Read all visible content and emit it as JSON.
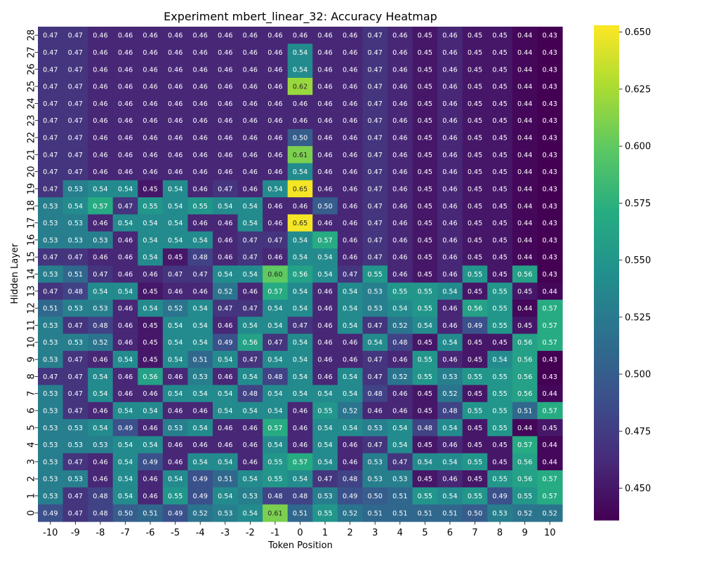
{
  "chart_data": {
    "type": "heatmap",
    "title": "Experiment mbert_linear_32: Accuracy Heatmap",
    "xlabel": "Token Position",
    "ylabel": "Hidden Layer",
    "x": [
      "-10",
      "-9",
      "-8",
      "-7",
      "-6",
      "-5",
      "-4",
      "-3",
      "-2",
      "-1",
      "0",
      "1",
      "2",
      "3",
      "4",
      "5",
      "6",
      "7",
      "8",
      "9",
      "10"
    ],
    "y": [
      "28",
      "27",
      "26",
      "25",
      "24",
      "23",
      "22",
      "21",
      "20",
      "19",
      "18",
      "17",
      "16",
      "15",
      "14",
      "13",
      "12",
      "11",
      "10",
      "9",
      "8",
      "7",
      "6",
      "5",
      "4",
      "3",
      "2",
      "1",
      "0"
    ],
    "values": [
      [
        0.47,
        0.47,
        0.46,
        0.46,
        0.46,
        0.46,
        0.46,
        0.46,
        0.46,
        0.46,
        0.46,
        0.46,
        0.46,
        0.47,
        0.46,
        0.45,
        0.46,
        0.45,
        0.45,
        0.44,
        0.43
      ],
      [
        0.47,
        0.47,
        0.46,
        0.46,
        0.46,
        0.46,
        0.46,
        0.46,
        0.46,
        0.46,
        0.54,
        0.46,
        0.46,
        0.47,
        0.46,
        0.45,
        0.46,
        0.45,
        0.45,
        0.44,
        0.43
      ],
      [
        0.47,
        0.47,
        0.46,
        0.46,
        0.46,
        0.46,
        0.46,
        0.46,
        0.46,
        0.46,
        0.54,
        0.46,
        0.46,
        0.47,
        0.46,
        0.45,
        0.46,
        0.45,
        0.45,
        0.44,
        0.43
      ],
      [
        0.47,
        0.47,
        0.46,
        0.46,
        0.46,
        0.46,
        0.46,
        0.46,
        0.46,
        0.46,
        0.62,
        0.46,
        0.46,
        0.47,
        0.46,
        0.45,
        0.46,
        0.45,
        0.45,
        0.44,
        0.43
      ],
      [
        0.47,
        0.47,
        0.46,
        0.46,
        0.46,
        0.46,
        0.46,
        0.46,
        0.46,
        0.46,
        0.46,
        0.46,
        0.46,
        0.47,
        0.46,
        0.45,
        0.46,
        0.45,
        0.45,
        0.44,
        0.43
      ],
      [
        0.47,
        0.47,
        0.46,
        0.46,
        0.46,
        0.46,
        0.46,
        0.46,
        0.46,
        0.46,
        0.46,
        0.46,
        0.46,
        0.47,
        0.46,
        0.45,
        0.46,
        0.45,
        0.45,
        0.44,
        0.43
      ],
      [
        0.47,
        0.47,
        0.46,
        0.46,
        0.46,
        0.46,
        0.46,
        0.46,
        0.46,
        0.46,
        0.5,
        0.46,
        0.46,
        0.47,
        0.46,
        0.45,
        0.46,
        0.45,
        0.45,
        0.44,
        0.43
      ],
      [
        0.47,
        0.47,
        0.46,
        0.46,
        0.46,
        0.46,
        0.46,
        0.46,
        0.46,
        0.46,
        0.61,
        0.46,
        0.46,
        0.47,
        0.46,
        0.45,
        0.46,
        0.45,
        0.45,
        0.44,
        0.43
      ],
      [
        0.47,
        0.47,
        0.46,
        0.46,
        0.46,
        0.46,
        0.46,
        0.46,
        0.46,
        0.46,
        0.54,
        0.46,
        0.46,
        0.47,
        0.46,
        0.45,
        0.46,
        0.45,
        0.45,
        0.44,
        0.43
      ],
      [
        0.47,
        0.53,
        0.54,
        0.54,
        0.45,
        0.54,
        0.46,
        0.47,
        0.46,
        0.54,
        0.65,
        0.46,
        0.46,
        0.47,
        0.46,
        0.45,
        0.46,
        0.45,
        0.45,
        0.44,
        0.43
      ],
      [
        0.53,
        0.54,
        0.57,
        0.47,
        0.55,
        0.54,
        0.55,
        0.54,
        0.54,
        0.46,
        0.46,
        0.5,
        0.46,
        0.47,
        0.46,
        0.45,
        0.46,
        0.45,
        0.45,
        0.44,
        0.43
      ],
      [
        0.53,
        0.53,
        0.46,
        0.54,
        0.54,
        0.54,
        0.46,
        0.46,
        0.54,
        0.46,
        0.65,
        0.46,
        0.46,
        0.47,
        0.46,
        0.45,
        0.46,
        0.45,
        0.45,
        0.44,
        0.43
      ],
      [
        0.53,
        0.53,
        0.53,
        0.46,
        0.54,
        0.54,
        0.54,
        0.46,
        0.47,
        0.47,
        0.54,
        0.57,
        0.46,
        0.47,
        0.46,
        0.45,
        0.46,
        0.45,
        0.45,
        0.44,
        0.43
      ],
      [
        0.47,
        0.47,
        0.46,
        0.46,
        0.54,
        0.45,
        0.48,
        0.46,
        0.47,
        0.46,
        0.54,
        0.54,
        0.46,
        0.47,
        0.46,
        0.45,
        0.46,
        0.45,
        0.45,
        0.44,
        0.43
      ],
      [
        0.53,
        0.51,
        0.47,
        0.46,
        0.46,
        0.47,
        0.47,
        0.54,
        0.54,
        0.6,
        0.56,
        0.54,
        0.47,
        0.55,
        0.46,
        0.45,
        0.46,
        0.55,
        0.45,
        0.56,
        0.43
      ],
      [
        0.47,
        0.48,
        0.54,
        0.54,
        0.45,
        0.46,
        0.46,
        0.52,
        0.46,
        0.57,
        0.54,
        0.46,
        0.54,
        0.53,
        0.55,
        0.55,
        0.54,
        0.45,
        0.55,
        0.45,
        0.44
      ],
      [
        0.51,
        0.53,
        0.53,
        0.46,
        0.54,
        0.52,
        0.54,
        0.47,
        0.47,
        0.54,
        0.54,
        0.46,
        0.54,
        0.53,
        0.54,
        0.55,
        0.46,
        0.56,
        0.55,
        0.44,
        0.57
      ],
      [
        0.53,
        0.47,
        0.48,
        0.46,
        0.45,
        0.54,
        0.54,
        0.46,
        0.54,
        0.54,
        0.47,
        0.46,
        0.54,
        0.47,
        0.52,
        0.54,
        0.46,
        0.49,
        0.55,
        0.45,
        0.57
      ],
      [
        0.53,
        0.53,
        0.52,
        0.46,
        0.45,
        0.54,
        0.54,
        0.49,
        0.56,
        0.47,
        0.54,
        0.46,
        0.46,
        0.54,
        0.48,
        0.45,
        0.54,
        0.45,
        0.45,
        0.56,
        0.57
      ],
      [
        0.53,
        0.47,
        0.46,
        0.54,
        0.45,
        0.54,
        0.51,
        0.54,
        0.47,
        0.54,
        0.54,
        0.46,
        0.46,
        0.47,
        0.46,
        0.55,
        0.46,
        0.45,
        0.54,
        0.56,
        0.43
      ],
      [
        0.47,
        0.47,
        0.54,
        0.46,
        0.56,
        0.46,
        0.53,
        0.46,
        0.54,
        0.48,
        0.54,
        0.46,
        0.54,
        0.47,
        0.52,
        0.55,
        0.53,
        0.55,
        0.55,
        0.56,
        0.43
      ],
      [
        0.53,
        0.47,
        0.54,
        0.46,
        0.46,
        0.54,
        0.54,
        0.54,
        0.48,
        0.54,
        0.54,
        0.54,
        0.54,
        0.48,
        0.46,
        0.45,
        0.52,
        0.45,
        0.55,
        0.56,
        0.44
      ],
      [
        0.53,
        0.47,
        0.46,
        0.54,
        0.54,
        0.46,
        0.46,
        0.54,
        0.54,
        0.54,
        0.46,
        0.55,
        0.52,
        0.46,
        0.46,
        0.45,
        0.48,
        0.55,
        0.55,
        0.51,
        0.57
      ],
      [
        0.53,
        0.53,
        0.54,
        0.49,
        0.46,
        0.53,
        0.54,
        0.46,
        0.46,
        0.57,
        0.46,
        0.54,
        0.54,
        0.53,
        0.54,
        0.48,
        0.54,
        0.45,
        0.55,
        0.44,
        0.45
      ],
      [
        0.53,
        0.53,
        0.53,
        0.54,
        0.54,
        0.46,
        0.46,
        0.46,
        0.46,
        0.54,
        0.46,
        0.54,
        0.46,
        0.47,
        0.54,
        0.45,
        0.46,
        0.45,
        0.45,
        0.57,
        0.44
      ],
      [
        0.53,
        0.47,
        0.46,
        0.54,
        0.49,
        0.46,
        0.54,
        0.54,
        0.46,
        0.55,
        0.57,
        0.54,
        0.46,
        0.53,
        0.47,
        0.54,
        0.54,
        0.55,
        0.45,
        0.56,
        0.44
      ],
      [
        0.53,
        0.53,
        0.46,
        0.54,
        0.46,
        0.54,
        0.49,
        0.51,
        0.54,
        0.55,
        0.54,
        0.47,
        0.48,
        0.53,
        0.53,
        0.45,
        0.46,
        0.45,
        0.55,
        0.56,
        0.57
      ],
      [
        0.53,
        0.47,
        0.48,
        0.54,
        0.46,
        0.55,
        0.49,
        0.54,
        0.53,
        0.48,
        0.48,
        0.53,
        0.49,
        0.5,
        0.51,
        0.55,
        0.54,
        0.55,
        0.49,
        0.55,
        0.57
      ],
      [
        0.49,
        0.47,
        0.48,
        0.5,
        0.51,
        0.49,
        0.52,
        0.53,
        0.54,
        0.61,
        0.51,
        0.55,
        0.52,
        0.51,
        0.51,
        0.51,
        0.51,
        0.5,
        0.53,
        0.52,
        0.52
      ]
    ],
    "value_format": "2-decimal",
    "colormap": "viridis",
    "vmin": 0.436,
    "vmax": 0.653,
    "colorbar_ticks": [
      "0.450",
      "0.475",
      "0.500",
      "0.525",
      "0.550",
      "0.575",
      "0.600",
      "0.625",
      "0.650"
    ],
    "annotate_cells": true
  }
}
